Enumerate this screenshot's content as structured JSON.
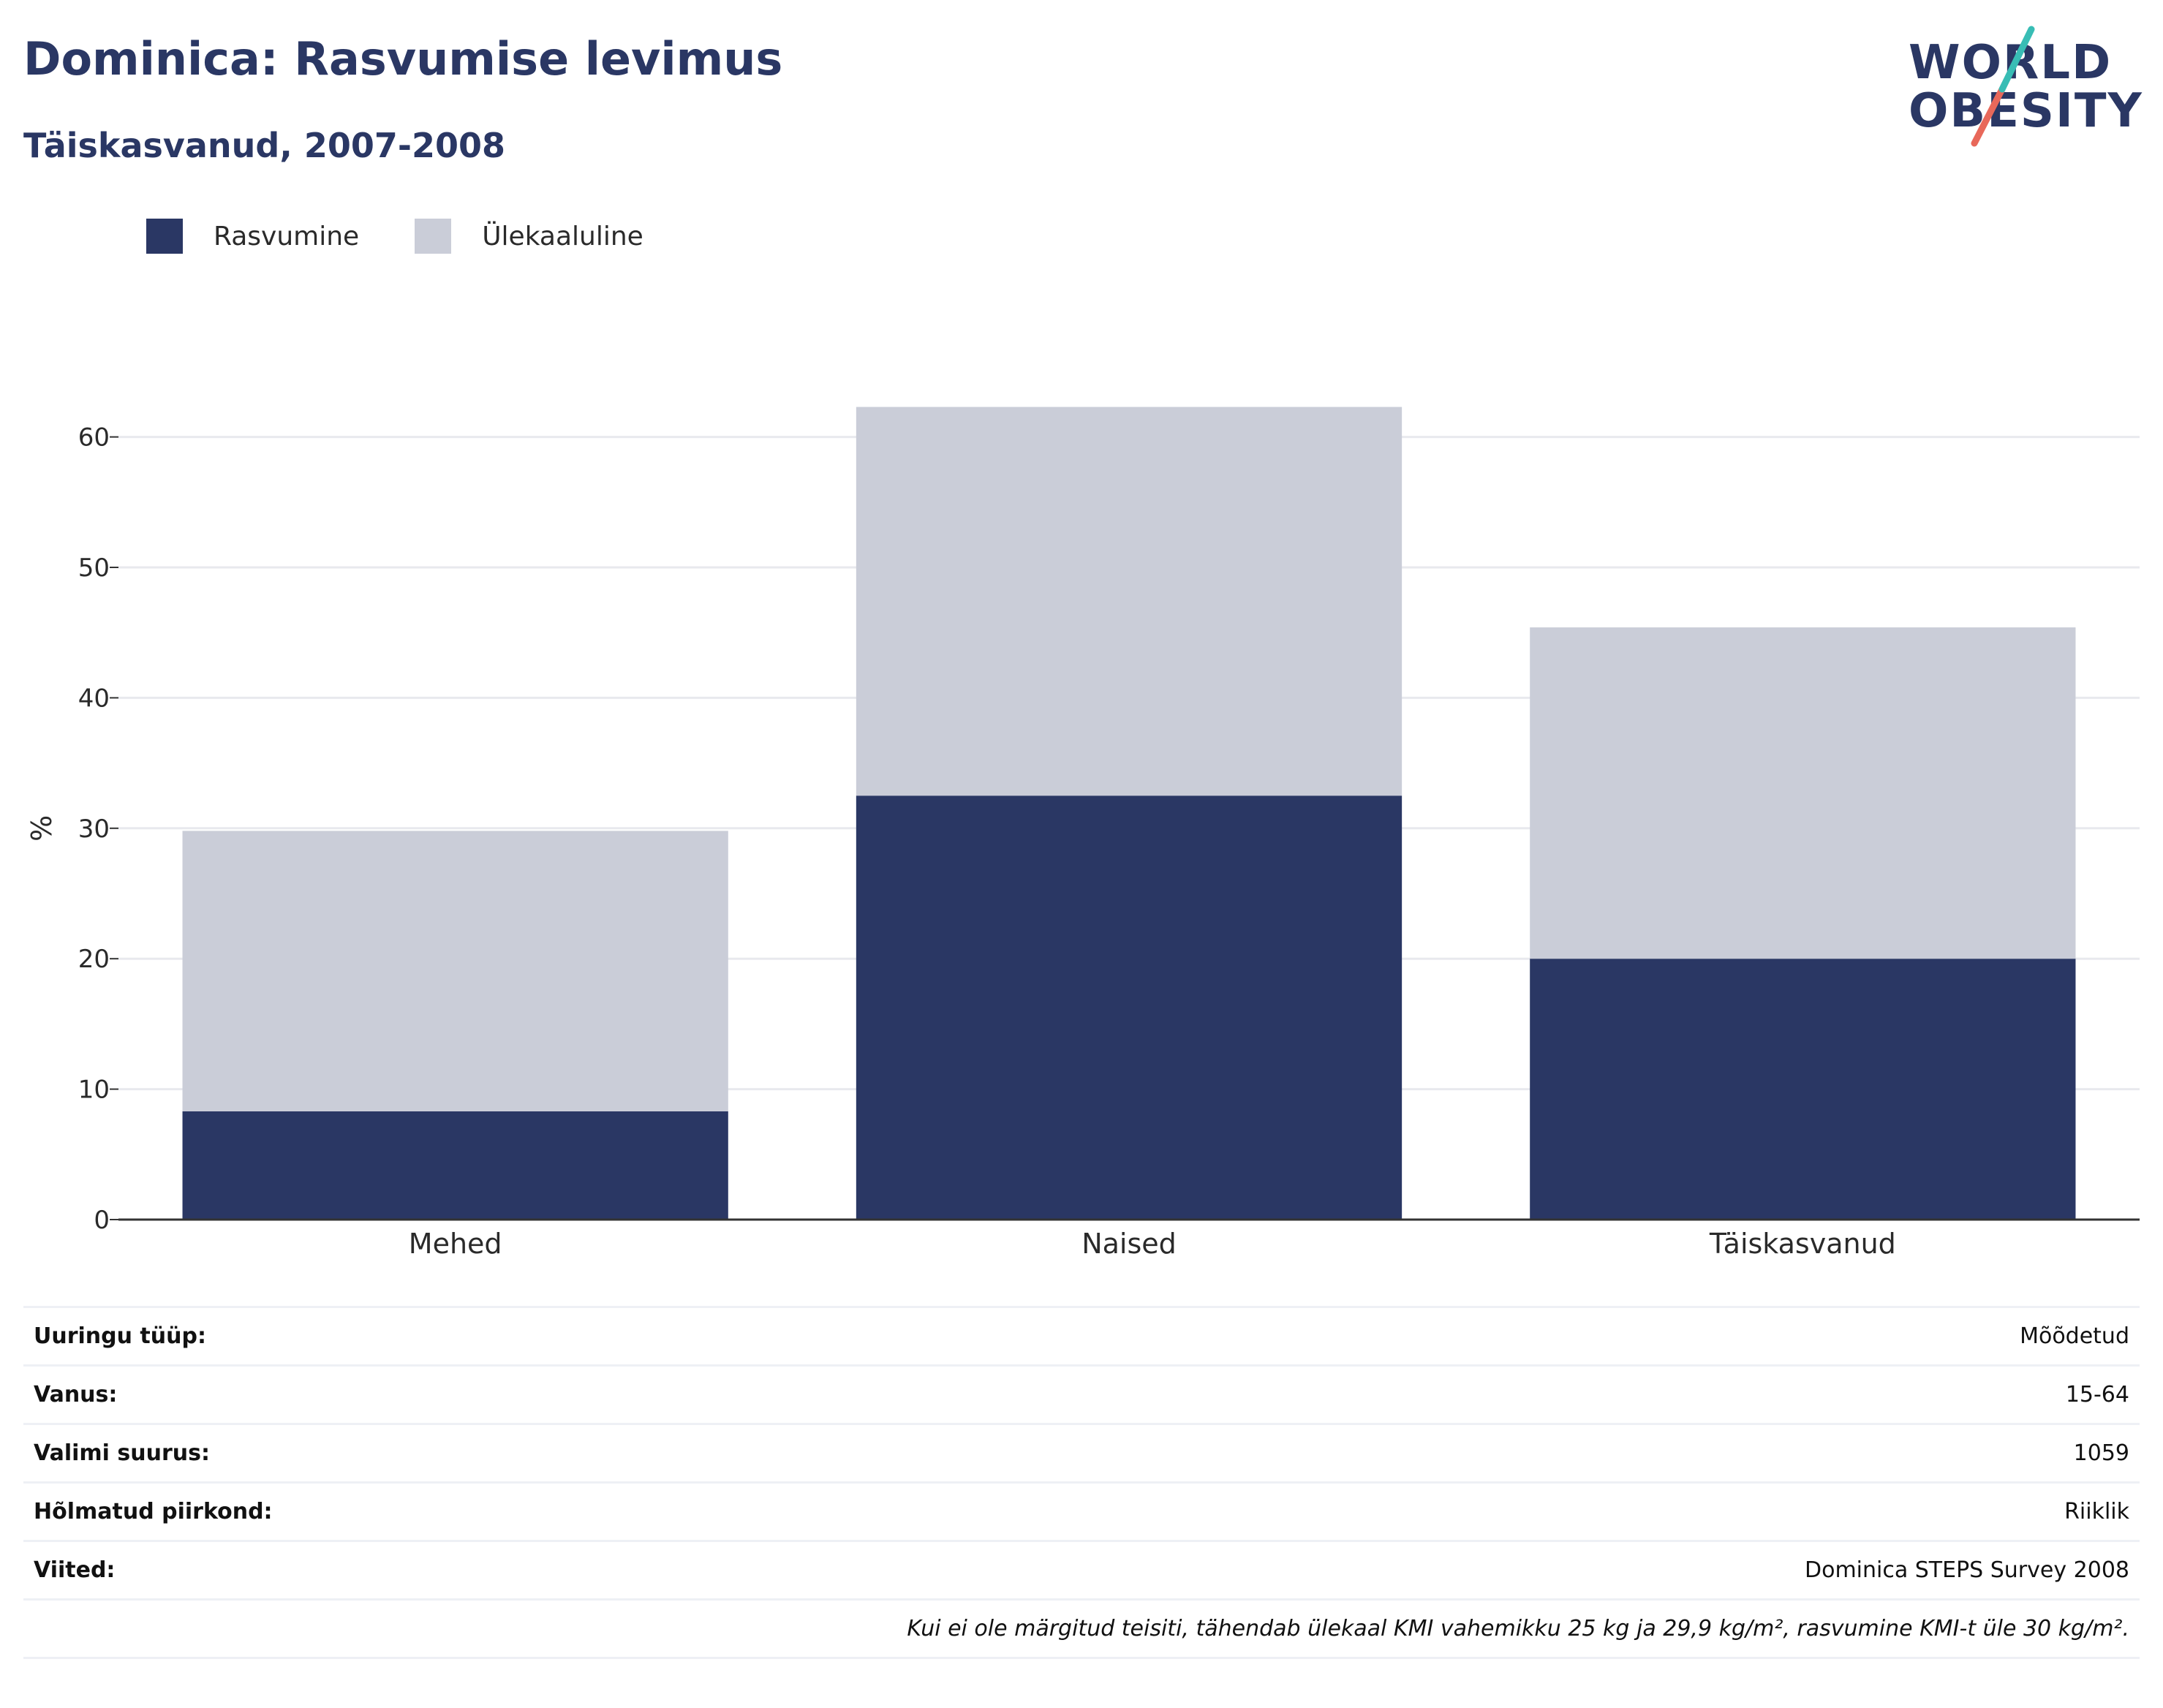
{
  "header": {
    "title": "Dominica: Rasvumise levimus",
    "subtitle": "Täiskasvanud, 2007-2008"
  },
  "logo": {
    "line1": "WORLD",
    "line2": "OBESITY"
  },
  "colors": {
    "obesity": "#2a3764",
    "overweight": "#cacdd8",
    "text": "#2a3764",
    "logo_teal": "#38bdb5",
    "logo_red": "#e8685a"
  },
  "chart_data": {
    "type": "bar",
    "stacked": true,
    "categories": [
      "Mehed",
      "Naised",
      "Täiskasvanud"
    ],
    "series": [
      {
        "name": "Rasvumine",
        "values": [
          8.3,
          32.5,
          20.0
        ],
        "color": "#2a3764"
      },
      {
        "name": "Ülekaaluline",
        "values": [
          21.5,
          29.8,
          25.4
        ],
        "color": "#cacdd8"
      }
    ],
    "ylabel": "%",
    "ylim": [
      0,
      70
    ],
    "yticks": [
      0,
      10,
      20,
      30,
      40,
      50,
      60
    ],
    "grid": true,
    "legend_position": "top-left"
  },
  "info": {
    "rows": [
      {
        "label": "Uuringu tüüp:",
        "value": "Mõõdetud"
      },
      {
        "label": "Vanus:",
        "value": "15-64"
      },
      {
        "label": "Valimi suurus:",
        "value": "1059"
      },
      {
        "label": "Hõlmatud piirkond:",
        "value": "Riiklik"
      },
      {
        "label": "Viited:",
        "value": "Dominica STEPS Survey 2008"
      }
    ],
    "note": "Kui ei ole märgitud teisiti, tähendab ülekaal KMI vahemikku 25 kg ja 29,9 kg/m², rasvumine KMI-t üle 30 kg/m²."
  }
}
